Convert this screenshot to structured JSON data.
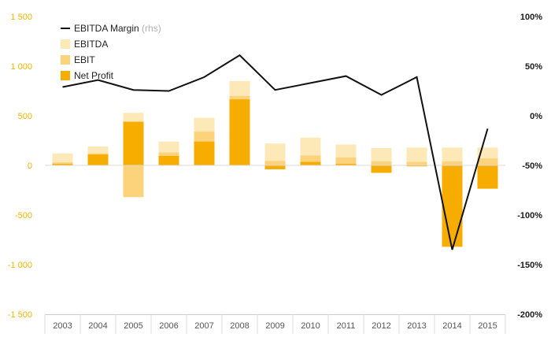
{
  "chart_data": {
    "type": "bar",
    "categories": [
      "2003",
      "2004",
      "2005",
      "2006",
      "2007",
      "2008",
      "2009",
      "2010",
      "2011",
      "2012",
      "2013",
      "2014",
      "2015"
    ],
    "series": [
      {
        "name": "EBITDA",
        "kind": "bar",
        "color": "#fde9b8",
        "values": [
          120,
          190,
          530,
          240,
          480,
          850,
          220,
          280,
          210,
          175,
          180,
          180,
          180
        ]
      },
      {
        "name": "EBIT",
        "kind": "bar",
        "color": "#fcd27a",
        "values": [
          30,
          120,
          -320,
          130,
          340,
          700,
          45,
          100,
          80,
          40,
          35,
          40,
          70
        ]
      },
      {
        "name": "Net Profit",
        "kind": "bar",
        "color": "#f7ad00",
        "values": [
          15,
          110,
          440,
          95,
          240,
          665,
          -40,
          35,
          15,
          -75,
          -10,
          -820,
          -235
        ]
      },
      {
        "name": "EBITDA Margin",
        "legend_suffix": "(rhs)",
        "kind": "line",
        "axis": "right",
        "color": "#111111",
        "values": [
          0.29,
          0.36,
          0.26,
          0.25,
          0.39,
          0.61,
          0.26,
          0.33,
          0.4,
          0.21,
          0.39,
          -1.35,
          -0.13
        ]
      }
    ],
    "y_left": {
      "lim": [
        -1500,
        1500
      ],
      "ticks": [
        -1500,
        -1000,
        -500,
        0,
        500,
        1000,
        1500
      ],
      "tick_labels": [
        "-1 500",
        "-1 000",
        "-500",
        "0",
        "500",
        "1 000",
        "1 500"
      ],
      "color": "#f0b400"
    },
    "y_right": {
      "lim": [
        -2.0,
        1.0
      ],
      "ticks": [
        -2.0,
        -1.5,
        -1.0,
        -0.5,
        0,
        0.5,
        1.0
      ],
      "tick_labels": [
        "-200%",
        "-150%",
        "-100%",
        "-50%",
        "0%",
        "50%",
        "100%"
      ]
    },
    "legend": {
      "placement": "top-left",
      "items": [
        {
          "label": "EBITDA Margin",
          "suffix": "(rhs)",
          "type": "line",
          "color": "#111111"
        },
        {
          "label": "EBITDA",
          "type": "box",
          "color": "#fde9b8"
        },
        {
          "label": "EBIT",
          "type": "box",
          "color": "#fcd27a"
        },
        {
          "label": "Net Profit",
          "type": "box",
          "color": "#f7ad00"
        }
      ]
    },
    "grid": false,
    "title": "",
    "xlabel": "",
    "ylabel": ""
  }
}
